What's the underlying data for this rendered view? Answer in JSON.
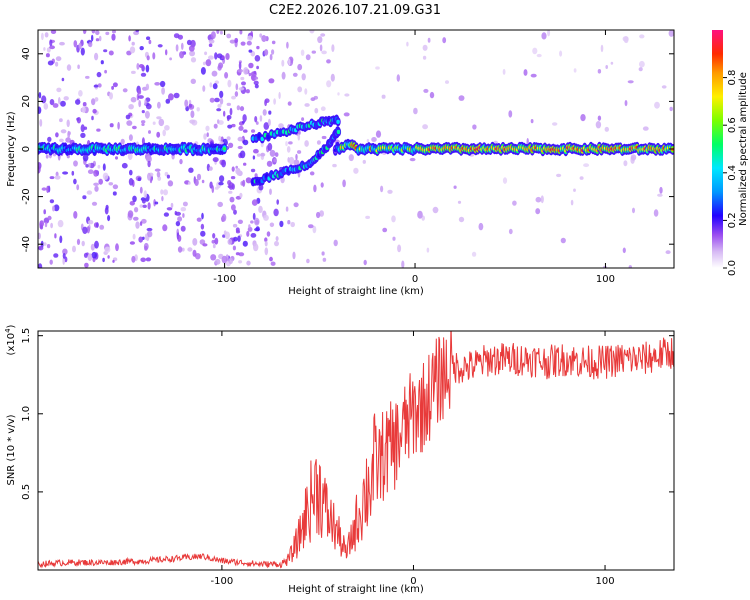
{
  "title": "C2E2.2026.107.21.09.G31",
  "chart_data": [
    {
      "type": "heatmap",
      "name": "spectrogram",
      "xlabel": "Height of straight line (km)",
      "ylabel": "Frequency (Hz)",
      "xlim": [
        -198,
        136
      ],
      "ylim": [
        -50,
        50
      ],
      "xticks": [
        -100,
        0,
        100
      ],
      "yticks": [
        -40,
        -20,
        0,
        20,
        40
      ],
      "colorbar": {
        "label": "Normalized spectral amplitude",
        "range": [
          0,
          1
        ],
        "ticks": [
          0.0,
          0.2,
          0.4,
          0.6,
          0.8
        ]
      },
      "features": [
        {
          "label": "main tone",
          "x": [
            -198,
            -40,
            -35,
            -20,
            0,
            136
          ],
          "freq": [
            0,
            0,
            2,
            0.5,
            0,
            0
          ]
        },
        {
          "label": "upper branch",
          "x": [
            -85,
            -65,
            -50,
            -40
          ],
          "freq": [
            4,
            8,
            11,
            12
          ]
        },
        {
          "label": "lower branch",
          "x": [
            -85,
            -70,
            -55,
            -45,
            -40
          ],
          "freq": [
            -14,
            -10,
            -6,
            2,
            8
          ]
        }
      ]
    },
    {
      "type": "line",
      "name": "snr",
      "xlabel": "Height of straight line (km)",
      "ylabel": "SNR (10 * v/v)",
      "scale_label": "(x10",
      "scale_exp": "4",
      "scale_close": ")",
      "xlim": [
        -196,
        136
      ],
      "ylim": [
        0,
        1.53
      ],
      "xticks": [
        -100,
        0,
        100
      ],
      "yticks": [
        0.5,
        1.0,
        1.5
      ],
      "ytick_labels": [
        "0.5",
        "1.0",
        "1.5"
      ],
      "series": [
        {
          "name": "SNR",
          "x": [
            -196,
            -180,
            -160,
            -140,
            -120,
            -110,
            -100,
            -90,
            -80,
            -70,
            -65,
            -60,
            -55,
            -50,
            -45,
            -40,
            -35,
            -30,
            -25,
            -20,
            -15,
            -10,
            -5,
            0,
            5,
            10,
            15,
            20,
            30,
            40,
            50,
            60,
            70,
            80,
            90,
            100,
            110,
            120,
            130,
            136
          ],
          "y": [
            0.03,
            0.04,
            0.04,
            0.05,
            0.07,
            0.08,
            0.05,
            0.04,
            0.03,
            0.03,
            0.07,
            0.2,
            0.4,
            0.55,
            0.35,
            0.25,
            0.1,
            0.3,
            0.5,
            0.65,
            0.75,
            0.8,
            0.9,
            1.0,
            1.05,
            1.15,
            1.25,
            1.3,
            1.3,
            1.35,
            1.35,
            1.35,
            1.33,
            1.35,
            1.33,
            1.33,
            1.35,
            1.35,
            1.38,
            1.4
          ]
        }
      ]
    }
  ],
  "colors": {
    "line": "#e83a3a",
    "axes": "#000000"
  }
}
